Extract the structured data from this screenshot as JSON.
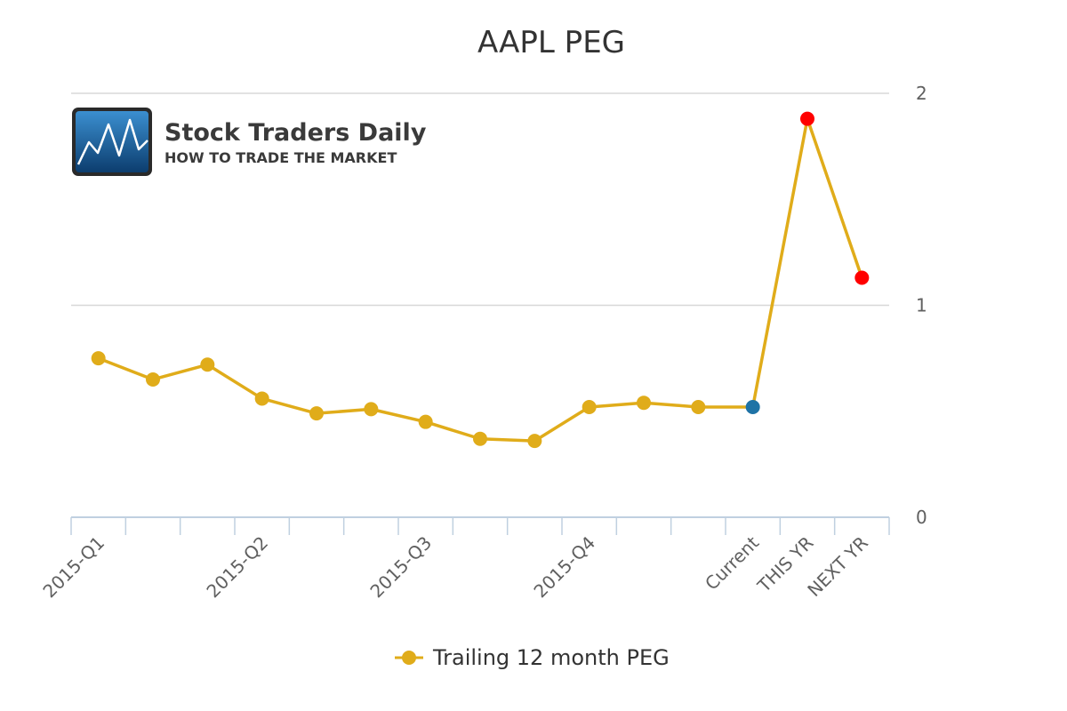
{
  "watermark": {
    "name": "Stock Traders Daily",
    "tagline": "HOW TO TRADE THE MARKET",
    "icon": "stock-chart-logo-icon"
  },
  "chart_data": {
    "type": "line",
    "title": "AAPL PEG",
    "xlabel": "",
    "ylabel": "",
    "categories": [
      "2015-Q1",
      "",
      "",
      "2015-Q2",
      "",
      "",
      "2015-Q3",
      "",
      "",
      "2015-Q4",
      "",
      "",
      "Current",
      "THIS YR",
      "NEXT YR"
    ],
    "ylim": [
      0,
      2
    ],
    "yticks": [
      0,
      1,
      2
    ],
    "y_axis_position": "right",
    "grid": true,
    "legend_position": "bottom-center",
    "series": [
      {
        "name": "Trailing 12 month PEG",
        "color": "#e0ac1a",
        "values": [
          0.75,
          0.65,
          0.72,
          0.56,
          0.49,
          0.51,
          0.45,
          0.37,
          0.36,
          0.52,
          0.54,
          0.52,
          0.52,
          1.88,
          1.13
        ],
        "point_colors": [
          "#e0ac1a",
          "#e0ac1a",
          "#e0ac1a",
          "#e0ac1a",
          "#e0ac1a",
          "#e0ac1a",
          "#e0ac1a",
          "#e0ac1a",
          "#e0ac1a",
          "#e0ac1a",
          "#e0ac1a",
          "#e0ac1a",
          "#1f73a6",
          "#ff0000",
          "#ff0000"
        ]
      }
    ],
    "colors": {
      "grid": "#d8d8d8",
      "axis": "#c0d0e0",
      "current_marker": "#1f73a6",
      "forecast_marker": "#ff0000"
    }
  }
}
